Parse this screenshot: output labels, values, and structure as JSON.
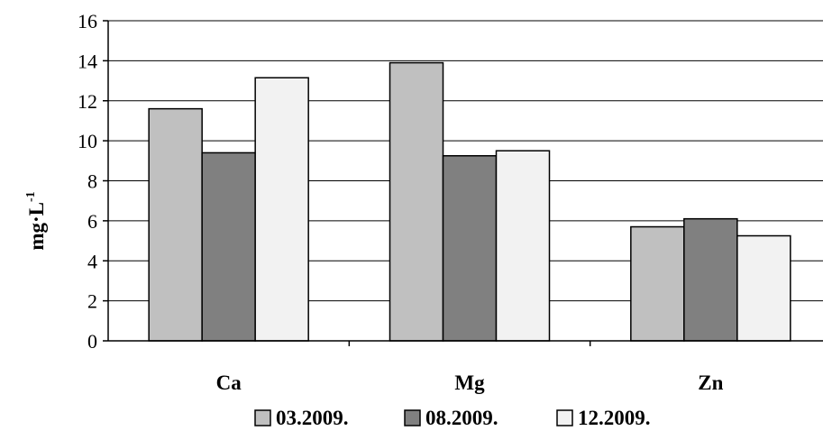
{
  "chart_data": {
    "type": "bar",
    "categories": [
      "Ca",
      "Mg",
      "Zn"
    ],
    "series": [
      {
        "name": "03.2009.",
        "values": [
          11.6,
          13.9,
          5.7
        ],
        "color": "#c0c0c0"
      },
      {
        "name": "08.2009.",
        "values": [
          9.4,
          9.25,
          6.1
        ],
        "color": "#808080"
      },
      {
        "name": "12.2009.",
        "values": [
          13.15,
          9.5,
          5.25
        ],
        "color": "#f2f2f2"
      }
    ],
    "ylabel": "mg·L",
    "ylabel_superscript": "-1",
    "ylim": [
      0,
      16
    ],
    "yticks": [
      0,
      2,
      4,
      6,
      8,
      10,
      12,
      14,
      16
    ],
    "grid": true,
    "legend_position": "bottom"
  }
}
